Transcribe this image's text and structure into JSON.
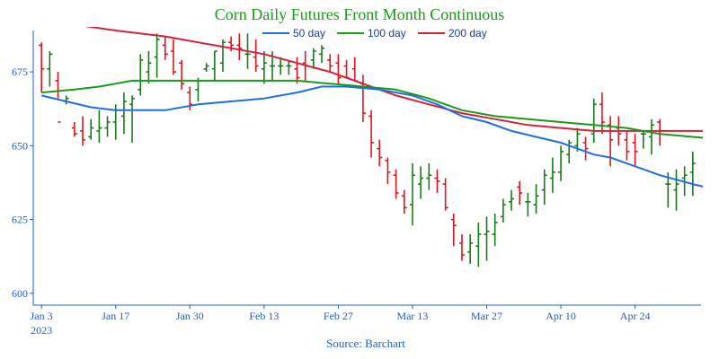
{
  "chart_data": {
    "type": "ohlc",
    "title": "Corn Daily Futures Front Month Continuous",
    "source": "Source: Barchart",
    "colors": {
      "title": "#1a9a1a",
      "up": "#1a7a1a",
      "down": "#e0141e",
      "ma50": "#1f6fdf",
      "ma100": "#1a9a1a",
      "ma200": "#d6203a",
      "axis": "#1f5fbf"
    },
    "legend": [
      {
        "label": "50 day",
        "color": "#1f6fdf"
      },
      {
        "label": "100 day",
        "color": "#1a9a1a"
      },
      {
        "label": "200 day",
        "color": "#d6203a"
      }
    ],
    "yaxis": {
      "ticks": [
        600,
        625,
        650,
        675
      ],
      "tick_labels": [
        "600",
        "625",
        "650",
        "675"
      ],
      "range": [
        596,
        689
      ]
    },
    "xaxis": {
      "range": [
        0,
        81
      ],
      "ticks": [
        {
          "x": 1,
          "label": "Jan 3",
          "sublabel": "2023"
        },
        {
          "x": 10,
          "label": "Jan 17",
          "sublabel": ""
        },
        {
          "x": 19,
          "label": "Jan 30",
          "sublabel": ""
        },
        {
          "x": 28,
          "label": "Feb 13",
          "sublabel": ""
        },
        {
          "x": 37,
          "label": "Feb 27",
          "sublabel": ""
        },
        {
          "x": 46,
          "label": "Mar 13",
          "sublabel": ""
        },
        {
          "x": 55,
          "label": "Mar 27",
          "sublabel": ""
        },
        {
          "x": 64,
          "label": "Apr 10",
          "sublabel": ""
        },
        {
          "x": 73,
          "label": "Apr 24",
          "sublabel": ""
        }
      ]
    },
    "bars": [
      [
        1,
        684,
        668,
        685,
        676
      ],
      [
        2,
        676,
        670,
        682,
        681
      ],
      [
        3,
        672,
        666,
        675,
        658
      ],
      [
        4,
        665,
        664,
        667,
        666
      ],
      [
        5,
        656,
        653,
        658,
        654
      ],
      [
        6,
        655,
        650,
        660,
        652
      ],
      [
        7,
        653,
        652,
        659,
        656
      ],
      [
        8,
        655,
        651,
        662,
        656
      ],
      [
        9,
        656,
        653,
        660,
        658
      ],
      [
        10,
        658,
        652,
        664,
        662
      ],
      [
        11,
        660,
        654,
        668,
        665
      ],
      [
        12,
        664,
        651,
        667,
        666
      ],
      [
        13,
        669,
        667,
        681,
        679
      ],
      [
        14,
        675,
        671,
        682,
        678
      ],
      [
        15,
        680,
        673,
        688,
        686
      ],
      [
        16,
        684,
        679,
        687,
        681
      ],
      [
        17,
        682,
        674,
        686,
        675
      ],
      [
        18,
        678,
        669,
        679,
        671
      ],
      [
        19,
        668,
        662,
        670,
        664
      ],
      [
        20,
        669,
        665,
        673,
        672
      ],
      [
        21,
        676,
        675,
        678,
        677
      ],
      [
        22,
        676,
        672,
        682,
        682
      ],
      [
        23,
        678,
        675,
        686,
        685
      ],
      [
        24,
        685,
        682,
        687,
        684
      ],
      [
        25,
        684,
        679,
        688,
        683
      ],
      [
        26,
        681,
        676,
        688,
        681
      ],
      [
        27,
        680,
        675,
        686,
        677
      ],
      [
        28,
        676,
        671,
        682,
        678
      ],
      [
        29,
        677,
        672,
        682,
        677
      ],
      [
        30,
        677,
        674,
        680,
        677
      ],
      [
        31,
        677,
        674,
        679,
        677
      ],
      [
        32,
        676,
        671,
        680,
        673
      ],
      [
        33,
        678,
        672,
        682,
        677
      ],
      [
        34,
        679,
        676,
        683,
        682
      ],
      [
        35,
        681,
        678,
        684,
        683
      ],
      [
        36,
        679,
        675,
        681,
        677
      ],
      [
        37,
        678,
        671,
        681,
        673
      ],
      [
        38,
        677,
        673,
        679,
        673
      ],
      [
        39,
        676,
        672,
        680,
        672
      ],
      [
        40,
        671,
        658,
        674,
        661
      ],
      [
        41,
        660,
        646,
        662,
        651
      ],
      [
        42,
        649,
        643,
        652,
        646
      ],
      [
        43,
        645,
        637,
        646,
        641
      ],
      [
        44,
        640,
        632,
        642,
        634
      ],
      [
        45,
        633,
        627,
        635,
        629
      ],
      [
        46,
        630,
        623,
        644,
        640
      ],
      [
        47,
        637,
        632,
        643,
        639
      ],
      [
        48,
        639,
        635,
        644,
        640
      ],
      [
        49,
        639,
        634,
        642,
        638
      ],
      [
        50,
        637,
        628,
        639,
        629
      ],
      [
        51,
        625,
        616,
        627,
        623
      ],
      [
        52,
        617,
        611,
        620,
        613
      ],
      [
        53,
        614,
        610,
        620,
        617
      ],
      [
        54,
        616,
        609,
        624,
        620
      ],
      [
        55,
        620,
        611,
        626,
        621
      ],
      [
        56,
        620,
        616,
        627,
        624
      ],
      [
        57,
        626,
        624,
        632,
        630
      ],
      [
        58,
        631,
        628,
        635,
        632
      ],
      [
        59,
        636,
        630,
        638,
        634
      ],
      [
        60,
        631,
        626,
        634,
        631
      ],
      [
        61,
        630,
        627,
        637,
        633
      ],
      [
        62,
        635,
        630,
        642,
        640
      ],
      [
        63,
        639,
        634,
        646,
        641
      ],
      [
        64,
        641,
        638,
        650,
        648
      ],
      [
        65,
        647,
        644,
        652,
        651
      ],
      [
        66,
        650,
        648,
        656,
        654
      ],
      [
        67,
        651,
        645,
        653,
        649
      ],
      [
        68,
        654,
        651,
        666,
        664
      ],
      [
        69,
        664,
        654,
        668,
        658
      ],
      [
        70,
        657,
        643,
        660,
        652
      ],
      [
        71,
        656,
        650,
        660,
        654
      ],
      [
        72,
        652,
        645,
        655,
        648
      ],
      [
        73,
        651,
        643,
        654,
        648
      ],
      [
        74,
        654,
        649,
        655,
        654
      ],
      [
        75,
        653,
        647,
        659,
        657
      ],
      [
        76,
        658,
        650,
        659,
        655
      ],
      [
        77,
        637,
        629,
        641,
        637
      ],
      [
        78,
        635,
        628,
        642,
        637
      ],
      [
        79,
        639,
        633,
        643,
        640
      ],
      [
        80,
        641,
        633,
        648,
        644
      ]
    ],
    "ma50": [
      [
        1,
        667
      ],
      [
        4,
        665
      ],
      [
        7,
        663
      ],
      [
        10,
        662
      ],
      [
        16,
        662
      ],
      [
        20,
        664
      ],
      [
        24,
        665
      ],
      [
        28,
        666
      ],
      [
        32,
        668
      ],
      [
        35,
        670
      ],
      [
        38,
        670
      ],
      [
        42,
        669
      ],
      [
        46,
        667
      ],
      [
        49,
        664
      ],
      [
        52,
        660
      ],
      [
        55,
        658
      ],
      [
        58,
        655
      ],
      [
        61,
        653
      ],
      [
        64,
        651
      ],
      [
        66,
        649
      ],
      [
        68,
        647
      ],
      [
        70,
        646
      ],
      [
        72,
        644
      ],
      [
        74,
        642
      ],
      [
        76,
        640
      ],
      [
        80,
        637
      ],
      [
        83,
        635
      ],
      [
        85,
        633
      ]
    ],
    "ma100": [
      [
        1,
        668
      ],
      [
        5,
        669
      ],
      [
        8,
        670
      ],
      [
        12,
        672
      ],
      [
        16,
        672
      ],
      [
        20,
        672
      ],
      [
        24,
        672
      ],
      [
        28,
        672
      ],
      [
        32,
        672
      ],
      [
        36,
        671
      ],
      [
        40,
        670
      ],
      [
        44,
        669
      ],
      [
        48,
        666
      ],
      [
        52,
        662
      ],
      [
        56,
        660
      ],
      [
        60,
        659
      ],
      [
        64,
        658
      ],
      [
        68,
        657
      ],
      [
        72,
        656
      ],
      [
        76,
        654
      ],
      [
        80,
        653
      ],
      [
        84,
        652
      ],
      [
        86,
        651
      ]
    ],
    "ma200": [
      [
        1,
        693
      ],
      [
        5,
        691
      ],
      [
        10,
        689
      ],
      [
        16,
        687
      ],
      [
        20,
        685
      ],
      [
        24,
        683
      ],
      [
        28,
        681
      ],
      [
        32,
        678
      ],
      [
        36,
        675
      ],
      [
        40,
        671
      ],
      [
        44,
        667
      ],
      [
        48,
        664
      ],
      [
        52,
        661
      ],
      [
        56,
        659
      ],
      [
        60,
        657
      ],
      [
        64,
        656
      ],
      [
        68,
        655
      ],
      [
        72,
        655
      ],
      [
        76,
        655
      ],
      [
        80,
        655
      ],
      [
        84,
        655
      ],
      [
        86,
        655
      ]
    ]
  }
}
